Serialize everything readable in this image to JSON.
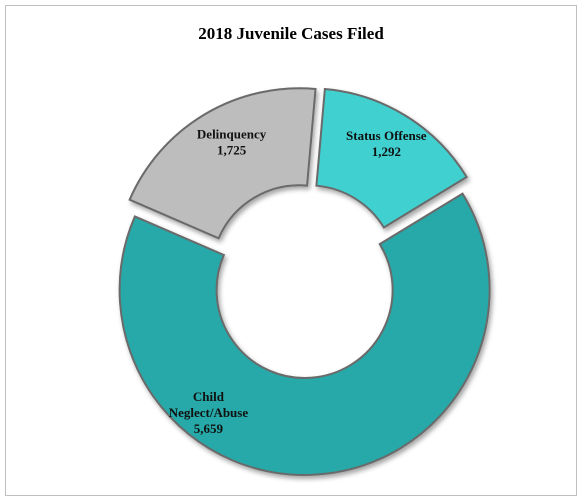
{
  "chart_data": {
    "type": "pie",
    "variant": "donut",
    "title": "2018 Juvenile Cases Filed",
    "slices": [
      {
        "label_lines": [
          "Status Offense",
          "1,292"
        ],
        "value": 1292,
        "color": "#3fd0d0"
      },
      {
        "label_lines": [
          "Child",
          "Neglect/Abuse",
          "5,659"
        ],
        "value": 5659,
        "color": "#27a9a8"
      },
      {
        "label_lines": [
          "Delinquency",
          "1,725"
        ],
        "value": 1725,
        "color": "#bdbdbd"
      }
    ],
    "legend": "none"
  }
}
